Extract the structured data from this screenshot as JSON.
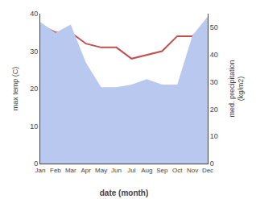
{
  "chart_data": {
    "type": "line",
    "xlabel": "date (month)",
    "ylabel": "max temp (C)",
    "y2label": "med. precipitation\n(kg/m2)",
    "categories": [
      "Jan",
      "Feb",
      "Mar",
      "Apr",
      "May",
      "Jun",
      "Jul",
      "Aug",
      "Sep",
      "Oct",
      "Nov",
      "Dec"
    ],
    "series": [
      {
        "type": "area",
        "axis": "y2",
        "color": "#b8c8ee",
        "values": [
          52,
          48,
          51,
          37,
          28,
          28,
          29,
          31,
          29,
          29,
          47,
          54
        ]
      },
      {
        "type": "line",
        "axis": "y",
        "color": "#c0504d",
        "values": [
          37,
          35,
          35,
          32,
          31,
          31,
          28,
          29,
          30,
          34,
          34,
          37
        ]
      }
    ],
    "ylim": [
      0,
      40
    ],
    "yticks": [
      0,
      10,
      20,
      30,
      40
    ],
    "y2lim": [
      0,
      55
    ],
    "y2ticks": [
      0,
      10,
      20,
      30,
      40,
      50
    ],
    "grid": false
  }
}
